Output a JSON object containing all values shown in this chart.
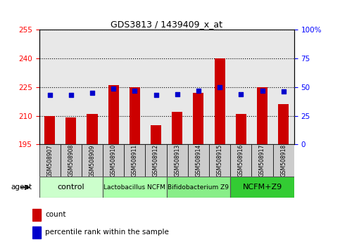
{
  "title": "GDS3813 / 1439409_x_at",
  "samples": [
    "GSM508907",
    "GSM508908",
    "GSM508909",
    "GSM508910",
    "GSM508911",
    "GSM508912",
    "GSM508913",
    "GSM508914",
    "GSM508915",
    "GSM508916",
    "GSM508917",
    "GSM508918"
  ],
  "counts": [
    210,
    209,
    211,
    226,
    225,
    205,
    212,
    222,
    240,
    211,
    225,
    216
  ],
  "percentiles": [
    43,
    43,
    45,
    49,
    47,
    43,
    44,
    47,
    50,
    44,
    47,
    46
  ],
  "y_min": 195,
  "y_max": 255,
  "y_ticks": [
    195,
    210,
    225,
    240,
    255
  ],
  "y2_ticks": [
    0,
    25,
    50,
    75,
    100
  ],
  "groups": [
    {
      "label": "control",
      "start": 0,
      "end": 3,
      "color": "#ccffcc",
      "fontsize": 8
    },
    {
      "label": "Lactobacillus NCFM",
      "start": 3,
      "end": 6,
      "color": "#aaffaa",
      "fontsize": 6.5
    },
    {
      "label": "Bifidobacterium Z9",
      "start": 6,
      "end": 9,
      "color": "#88ee88",
      "fontsize": 6.5
    },
    {
      "label": "NCFM+Z9",
      "start": 9,
      "end": 12,
      "color": "#33cc33",
      "fontsize": 8
    }
  ],
  "bar_color": "#cc0000",
  "marker_color": "#0000cc",
  "bar_width": 0.5,
  "plot_bg": "#e8e8e8",
  "sample_box_color": "#cccccc",
  "legend_labels": [
    "count",
    "percentile rank within the sample"
  ],
  "legend_colors": [
    "#cc0000",
    "#0000cc"
  ]
}
